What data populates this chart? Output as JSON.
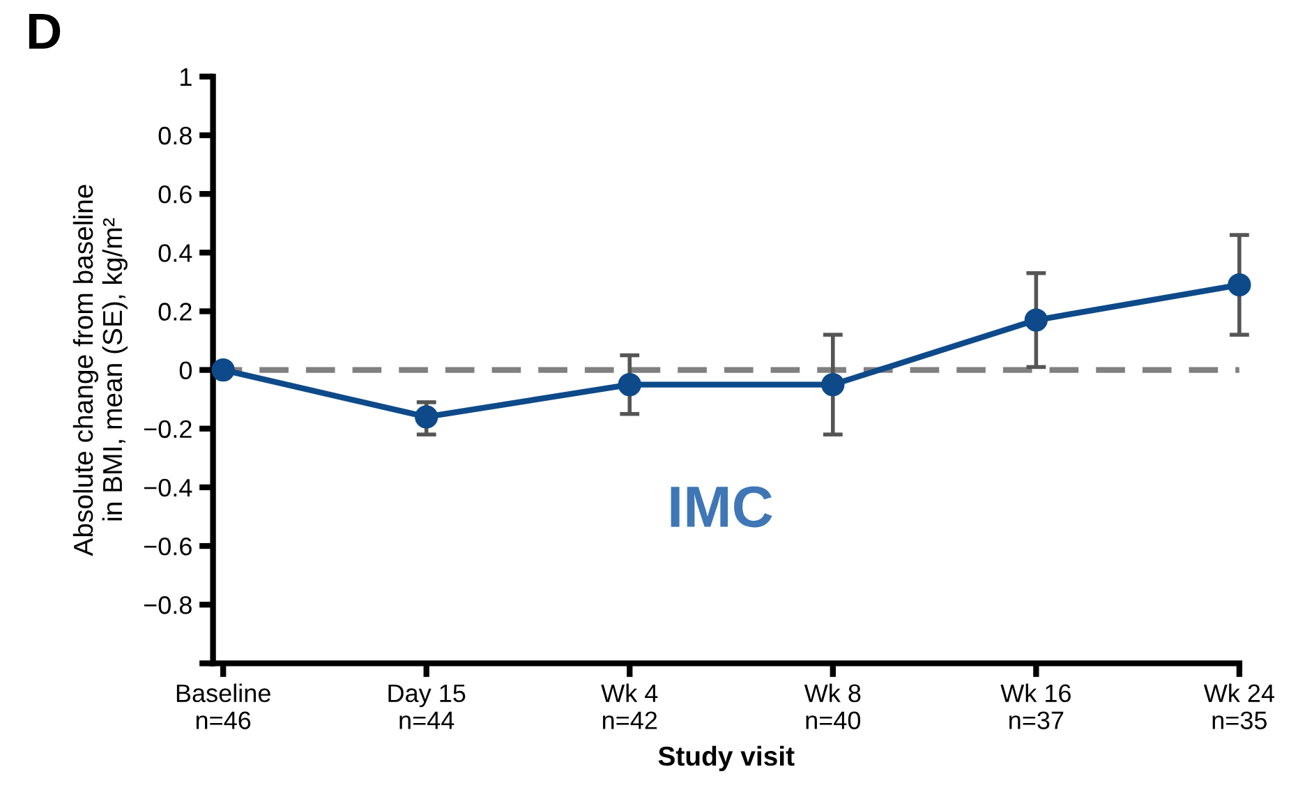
{
  "chart_data": {
    "type": "line",
    "title": "D",
    "xlabel": "Study visit",
    "ylabel": "Absolute change from baseline\nin BMI, mean (SE), kg/m²",
    "categories": [
      "Baseline\nn=46",
      "Day 15\nn=44",
      "Wk 4\nn=42",
      "Wk 8\nn=40",
      "Wk 16\nn=37",
      "Wk 24\nn=35"
    ],
    "series": [
      {
        "color": "#0e4a8a",
        "values": [
          0,
          -0.16,
          -0.05,
          -0.05,
          0.17,
          0.29
        ],
        "errors": [
          null,
          [
            -0.22,
            -0.11
          ],
          [
            -0.15,
            0.05
          ],
          [
            -0.22,
            0.12
          ],
          [
            0.01,
            0.33
          ],
          [
            0.12,
            0.46
          ]
        ]
      }
    ],
    "ylim": [
      -1,
      1
    ],
    "yticks": [
      {
        "value": -1,
        "label": null
      },
      {
        "value": -0.8,
        "label": "−0.8"
      },
      {
        "value": -0.6,
        "label": "−0.6"
      },
      {
        "value": -0.4,
        "label": "−0.4"
      },
      {
        "value": -0.2,
        "label": "−0.2"
      },
      0,
      {
        "value": 0.2,
        "label": "0.2"
      },
      {
        "value": 0.4,
        "label": "0.4"
      },
      {
        "value": 0.6,
        "label": "0.6"
      },
      {
        "value": 0.8,
        "label": "0.8"
      },
      1
    ],
    "ref_lines": [
      {
        "axis": "y",
        "value": 0,
        "color": "#808080",
        "line_style": "dashed"
      }
    ],
    "annotations": [
      "IMC"
    ],
    "marker": "circle",
    "line_style": "solid",
    "grid": false,
    "legend": false
  }
}
